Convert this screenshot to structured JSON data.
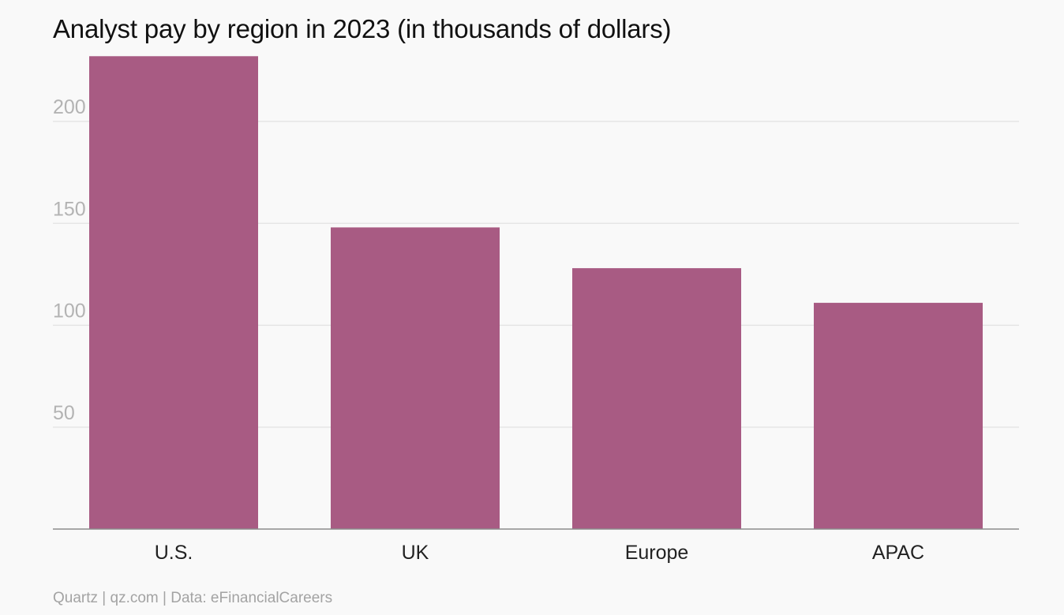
{
  "title": "Analyst pay by region in 2023 (in thousands of dollars)",
  "footer": "Quartz | qz.com | Data: eFinancialCareers",
  "colors": {
    "bar": "#a85b83",
    "grid": "#e2e2e2",
    "axis": "#8c8c8c",
    "background": "#f9f9f9"
  },
  "chart_data": {
    "type": "bar",
    "categories": [
      "U.S.",
      "UK",
      "Europe",
      "APAC"
    ],
    "values": [
      232,
      148,
      128,
      111
    ],
    "title": "Analyst pay by region in 2023 (in thousands of dollars)",
    "xlabel": "",
    "ylabel": "",
    "ylim": [
      0,
      232
    ],
    "yticks": [
      50,
      100,
      150,
      200
    ],
    "ytick_labels": [
      "50",
      "100",
      "150",
      "200"
    ],
    "grid": true,
    "legend": "none"
  }
}
